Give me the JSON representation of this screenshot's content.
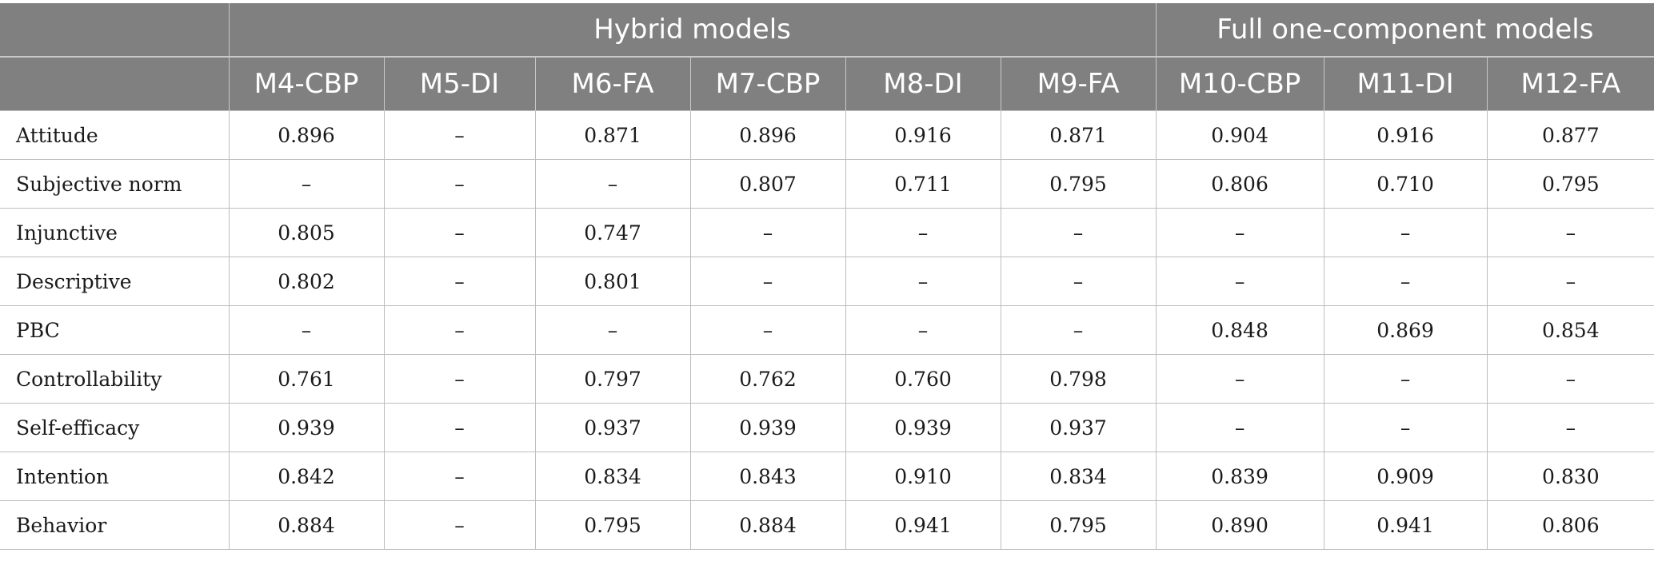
{
  "table": {
    "groups": [
      {
        "label": "",
        "span": 1
      },
      {
        "label": "Hybrid models",
        "span": 6
      },
      {
        "label": "Full one-component models",
        "span": 3
      }
    ],
    "model_headers": [
      "",
      "M4-CBP",
      "M5-DI",
      "M6-FA",
      "M7-CBP",
      "M8-DI",
      "M9-FA",
      "M10-CBP",
      "M11-DI",
      "M12-FA"
    ],
    "rows": [
      {
        "label": "Attitude",
        "values": [
          "0.896",
          "–",
          "0.871",
          "0.896",
          "0.916",
          "0.871",
          "0.904",
          "0.916",
          "0.877"
        ]
      },
      {
        "label": "Subjective norm",
        "values": [
          "–",
          "–",
          "–",
          "0.807",
          "0.711",
          "0.795",
          "0.806",
          "0.710",
          "0.795"
        ]
      },
      {
        "label": "Injunctive",
        "values": [
          "0.805",
          "–",
          "0.747",
          "–",
          "–",
          "–",
          "–",
          "–",
          "–"
        ]
      },
      {
        "label": "Descriptive",
        "values": [
          "0.802",
          "–",
          "0.801",
          "–",
          "–",
          "–",
          "–",
          "–",
          "–"
        ]
      },
      {
        "label": "PBC",
        "values": [
          "–",
          "–",
          "–",
          "–",
          "–",
          "–",
          "0.848",
          "0.869",
          "0.854"
        ]
      },
      {
        "label": "Controllability",
        "values": [
          "0.761",
          "–",
          "0.797",
          "0.762",
          "0.760",
          "0.798",
          "–",
          "–",
          "–"
        ]
      },
      {
        "label": "Self-efficacy",
        "values": [
          "0.939",
          "–",
          "0.937",
          "0.939",
          "0.939",
          "0.937",
          "–",
          "–",
          "–"
        ]
      },
      {
        "label": "Intention",
        "values": [
          "0.842",
          "–",
          "0.834",
          "0.843",
          "0.910",
          "0.834",
          "0.839",
          "0.909",
          "0.830"
        ]
      },
      {
        "label": "Behavior",
        "values": [
          "0.884",
          "–",
          "0.795",
          "0.884",
          "0.941",
          "0.795",
          "0.890",
          "0.941",
          "0.806"
        ]
      }
    ],
    "colors": {
      "header_bg": "#808080",
      "header_text": "#ffffff",
      "grid": "#bdbdbd"
    }
  }
}
